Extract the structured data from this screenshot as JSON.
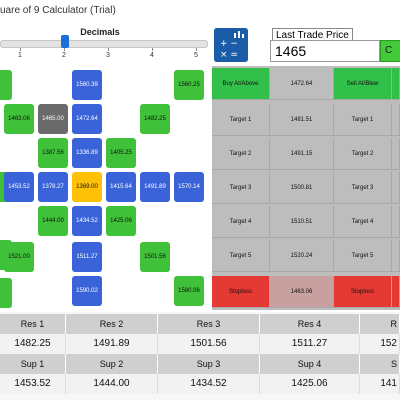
{
  "window": {
    "title": "uare of 9 Calculator (Trial)"
  },
  "decimals": {
    "label": "Decimals",
    "ticks": [
      "1",
      "2",
      "3",
      "4",
      "5"
    ]
  },
  "app_icon": {
    "glyph": "+ −\n× ="
  },
  "last_trade_price": {
    "label": "Last Trade Price",
    "value": "1465",
    "button_label": "C"
  },
  "grid_cells": [
    {
      "name": "cell-1560-39",
      "text": "1560.39",
      "color": "blue"
    },
    {
      "name": "cell-1560-25",
      "text": "1560.25",
      "color": "green"
    },
    {
      "name": "cell-1463-06",
      "text": "1463.06",
      "color": "green"
    },
    {
      "name": "cell-1465-00",
      "text": "1465.00",
      "color": "gray"
    },
    {
      "name": "cell-1472-64",
      "text": "1472.64",
      "color": "blue"
    },
    {
      "name": "cell-1482-25",
      "text": "1482.25",
      "color": "green"
    },
    {
      "name": "cell-1387-56",
      "text": "1387.56",
      "color": "green"
    },
    {
      "name": "cell-1336-89",
      "text": "1336.89",
      "color": "blue"
    },
    {
      "name": "cell-1405-25",
      "text": "1405.25",
      "color": "green"
    },
    {
      "name": "cell-1453-52",
      "text": "1453.52",
      "color": "blue"
    },
    {
      "name": "cell-1378-27",
      "text": "1378.27",
      "color": "blue"
    },
    {
      "name": "cell-1369-00",
      "text": "1369.00",
      "color": "yellow"
    },
    {
      "name": "cell-1415-64",
      "text": "1415.64",
      "color": "blue"
    },
    {
      "name": "cell-1491-89",
      "text": "1491.89",
      "color": "blue"
    },
    {
      "name": "cell-1570-14",
      "text": "1570.14",
      "color": "blue"
    },
    {
      "name": "cell-1444-00",
      "text": "1444.00",
      "color": "green"
    },
    {
      "name": "cell-1434-52",
      "text": "1434.52",
      "color": "blue"
    },
    {
      "name": "cell-1425-06",
      "text": "1425.06",
      "color": "green"
    },
    {
      "name": "cell-1521-00",
      "text": "1521.00",
      "color": "green"
    },
    {
      "name": "cell-1511-27",
      "text": "1511.27",
      "color": "blue"
    },
    {
      "name": "cell-1501-56",
      "text": "1501.56",
      "color": "green"
    },
    {
      "name": "cell-1590-02",
      "text": "1590.02",
      "color": "blue"
    },
    {
      "name": "cell-1580-06",
      "text": "1580.06",
      "color": "green"
    }
  ],
  "targets": {
    "header": {
      "buy": "Buy At/Above",
      "buy_price": "1472.64",
      "sell": "Sell At/Blew"
    },
    "rows": [
      {
        "label": "Target 1",
        "value": "1481.51",
        "label2": "Target 1"
      },
      {
        "label": "Target 2",
        "value": "1491.15",
        "label2": "Target 2"
      },
      {
        "label": "Target 3",
        "value": "1500.81",
        "label2": "Target 3"
      },
      {
        "label": "Target 4",
        "value": "1510.51",
        "label2": "Target 4"
      },
      {
        "label": "Target 5",
        "value": "1520.24",
        "label2": "Target 5"
      }
    ],
    "stoploss": {
      "label": "Stoploss",
      "value": "1463.06",
      "label2": "Stoploss"
    }
  },
  "resistance": {
    "headers": [
      "Res 1",
      "Res 2",
      "Res 3",
      "Res 4",
      "R"
    ],
    "values": [
      "1482.25",
      "1491.89",
      "1501.56",
      "1511.27",
      "152"
    ]
  },
  "support": {
    "headers": [
      "Sup 1",
      "Sup 2",
      "Sup 3",
      "Sup 4",
      "S"
    ],
    "values": [
      "1453.52",
      "1444.00",
      "1434.52",
      "1425.06",
      "141"
    ]
  },
  "colors": {
    "green": "#3fc13a",
    "blue": "#3a63d9",
    "gray": "#6a6a6a",
    "yellow": "#ffc107",
    "red": "#e53935",
    "accent": "#1a5ca8"
  }
}
